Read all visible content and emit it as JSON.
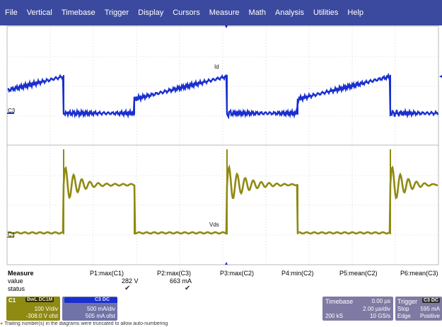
{
  "menu": [
    "File",
    "Vertical",
    "Timebase",
    "Trigger",
    "Display",
    "Cursors",
    "Measure",
    "Math",
    "Analysis",
    "Utilities",
    "Help"
  ],
  "colors": {
    "menubar": "#3b4a9e",
    "trace_c3": "#1a2fcf",
    "trace_c1": "#8f8a12",
    "grid": "#b8b8b8"
  },
  "waveform": {
    "c3_marker": "C3",
    "c1_marker": "C1",
    "label_top": "Id",
    "label_bottom": "Vds"
  },
  "measure": {
    "title": "Measure",
    "row_labels": [
      "value",
      "status"
    ],
    "columns": [
      {
        "header": "P1:max(C1)",
        "value": "282 V",
        "status": "✔"
      },
      {
        "header": "P2:max(C3)",
        "value": "663 mA",
        "status": "✔"
      },
      {
        "header": "P3:max(C2)",
        "value": "",
        "status": ""
      },
      {
        "header": "P4:min(C2)",
        "value": "",
        "status": ""
      },
      {
        "header": "P5:mean(C2)",
        "value": "",
        "status": ""
      },
      {
        "header": "P6:mean(C3)",
        "value": "",
        "status": ""
      }
    ]
  },
  "channels": {
    "c1": {
      "tag": "C1",
      "badge": "BwL DC1M",
      "vdiv": "100 V/div",
      "offset": "-308.0 V ofst"
    },
    "c3": {
      "tag": "C3",
      "badge": "C3 DC",
      "vdiv": "500 mA/div",
      "offset": "505 mA ofst"
    }
  },
  "timebase": {
    "label": "Timebase",
    "delay": "0.00 µs",
    "tdiv": "2.00 µs/div",
    "samples": "200 kS",
    "rate": "10 GS/s"
  },
  "trigger": {
    "label": "Trigger",
    "badge": "C3 DC",
    "mode": "Stop",
    "level": "595 mA",
    "type": "Edge",
    "slope": "Positive"
  },
  "footer_note": "Trailing number(s) in the diagrams were truncated to allow auto-numbering"
}
